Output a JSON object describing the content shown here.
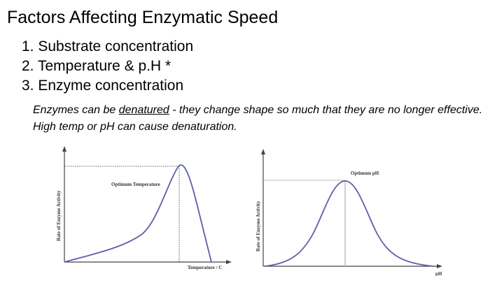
{
  "slide": {
    "title": "Factors Affecting Enzymatic Speed",
    "factors": [
      "1. Substrate concentration",
      "2. Temperature & p.H *",
      "3. Enzyme concentration"
    ],
    "note": {
      "before": "Enzymes can be ",
      "emphasis": "denatured",
      "after": " - they change shape so much that they are no longer effective. High temp or pH can cause denaturation."
    }
  },
  "graphs": {
    "temperature": {
      "y_label": "Rate of Enzyme Activity",
      "x_label": "Temperature / C",
      "optimum_label": "Optimum Temperature"
    },
    "ph": {
      "y_label": "Rate of Enzyme Activity",
      "x_label": "pH",
      "optimum_label": "Optimum pH"
    }
  },
  "colors": {
    "curve": "#5b5fa8",
    "axis": "#444444",
    "guide": "#333333"
  }
}
